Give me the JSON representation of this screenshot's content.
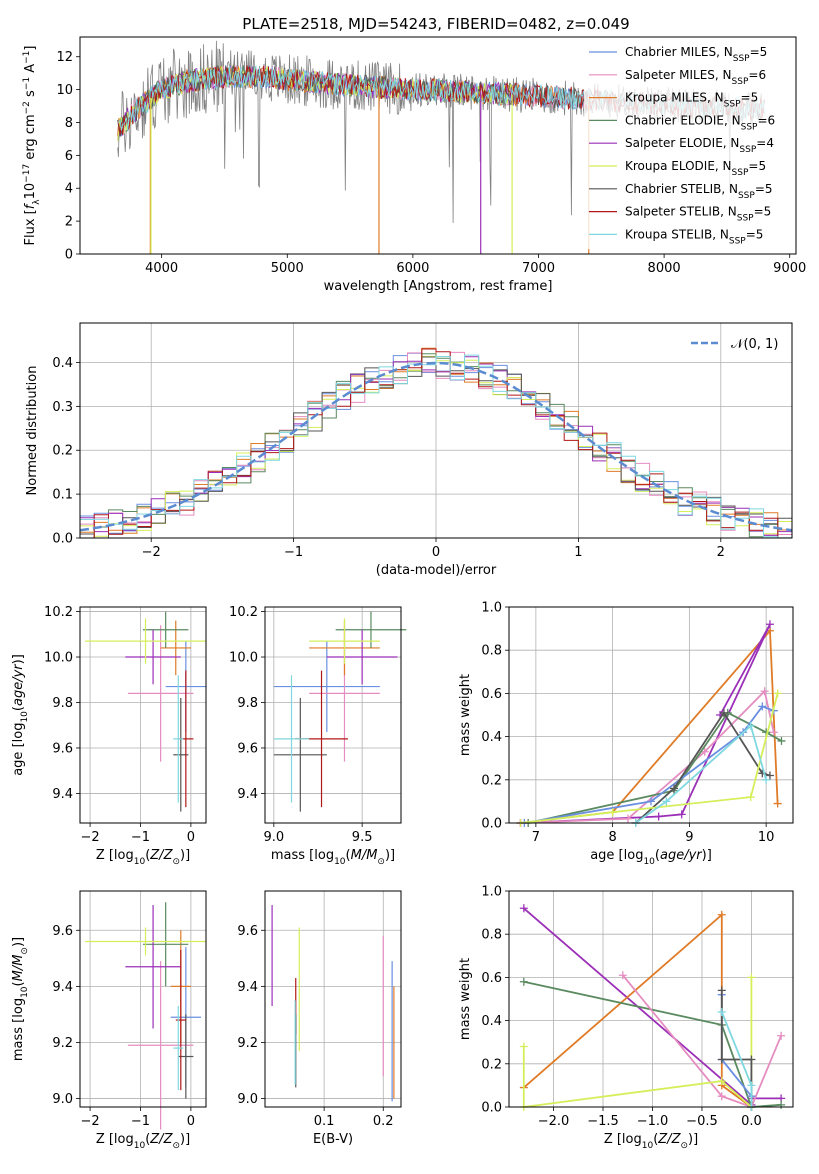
{
  "figure": {
    "title": "PLATE=2518, MJD=54243, FIBERID=0482, z=0.049"
  },
  "chart_data": [
    {
      "id": "spectrum",
      "type": "line",
      "xlabel": "wavelength [Angstrom, rest frame]",
      "ylabel": "Flux [f_λ10^-17 erg cm^-2 s^-1 A^-1]",
      "xlim": [
        3350,
        9050
      ],
      "ylim": [
        0,
        13.2
      ],
      "xticks": [
        4000,
        5000,
        6000,
        7000,
        8000,
        9000
      ],
      "yticks": [
        0,
        2,
        4,
        6,
        8,
        10,
        12
      ],
      "legend_position": "top-right",
      "data_envelope": {
        "x": [
          3650,
          3800,
          4000,
          4200,
          4500,
          4800,
          5000,
          5300,
          5600,
          6000,
          6400,
          6800,
          7200,
          7400,
          7600,
          7800,
          8000,
          8200,
          8500,
          8800
        ],
        "y": [
          7.5,
          8.8,
          10.0,
          10.5,
          10.8,
          10.8,
          10.6,
          10.4,
          10.2,
          10.0,
          9.9,
          9.7,
          9.5,
          9.4,
          9.3,
          9.2,
          9.1,
          9.0,
          8.9,
          8.8
        ]
      },
      "series": [
        {
          "name": "Chabrier MILES",
          "n_ssp": "5",
          "color": "#6a8fe0",
          "xrange": [
            3650,
            7420
          ]
        },
        {
          "name": "Salpeter MILES",
          "n_ssp": "6",
          "color": "#e58cc0",
          "xrange": [
            3650,
            7420
          ]
        },
        {
          "name": "Kroupa MILES",
          "n_ssp": "5",
          "color": "#e07b27",
          "xrange": [
            3650,
            7420
          ]
        },
        {
          "name": "Chabrier ELODIE",
          "n_ssp": "6",
          "color": "#5a8a5f",
          "xrange": [
            3650,
            6800
          ]
        },
        {
          "name": "Salpeter ELODIE",
          "n_ssp": "4",
          "color": "#9b2fb8",
          "xrange": [
            3650,
            6800
          ]
        },
        {
          "name": "Kroupa ELODIE",
          "n_ssp": "5",
          "color": "#d4ef5a",
          "xrange": [
            3650,
            6800
          ]
        },
        {
          "name": "Chabrier STELIB",
          "n_ssp": "5",
          "color": "#555555",
          "xrange": [
            3650,
            8800
          ]
        },
        {
          "name": "Salpeter STELIB",
          "n_ssp": "5",
          "color": "#b01818",
          "xrange": [
            3650,
            8800
          ]
        },
        {
          "name": "Kroupa STELIB",
          "n_ssp": "5",
          "color": "#7fd7e0",
          "xrange": [
            3650,
            8800
          ]
        }
      ]
    },
    {
      "id": "residuals",
      "type": "histogram",
      "xlabel": "(data-model)/error",
      "ylabel": "Normed distribution",
      "xlim": [
        -2.5,
        2.5
      ],
      "ylim": [
        0,
        0.49
      ],
      "xticks": [
        -2,
        -1,
        0,
        1,
        2
      ],
      "yticks": [
        0.0,
        0.1,
        0.2,
        0.3,
        0.4
      ],
      "grid": true,
      "legend_position": "top-right",
      "reference_label": "𝒩(0, 1)",
      "reference_color": "#5b8bd0",
      "bin_width": 0.1
    },
    {
      "id": "age_vs_Z",
      "type": "errorbar",
      "xlabel": "Z [log10(Z/Z⊙)]",
      "ylabel": "age [log10(age/yr)]",
      "xlim": [
        -2.2,
        0.3
      ],
      "ylim": [
        9.27,
        10.22
      ],
      "xticks": [
        -2,
        -1,
        0
      ],
      "yticks": [
        9.4,
        9.6,
        9.8,
        10.0,
        10.2
      ],
      "grid": true,
      "points": [
        {
          "color": "#6a8fe0",
          "x": -0.1,
          "xerr": 0.4,
          "y": 9.87,
          "yerr": 0.2
        },
        {
          "color": "#e58cc0",
          "x": -0.6,
          "xerr": 0.65,
          "y": 9.84,
          "yerr": 0.3
        },
        {
          "color": "#e07b27",
          "x": -0.3,
          "xerr": 0.3,
          "y": 10.04,
          "yerr": 0.12
        },
        {
          "color": "#5a8a5f",
          "x": -0.5,
          "xerr": 0.45,
          "y": 10.12,
          "yerr": 0.08
        },
        {
          "color": "#9b2fb8",
          "x": -0.75,
          "xerr": 0.55,
          "y": 10.0,
          "yerr": 0.12
        },
        {
          "color": "#d4ef5a",
          "x": -0.9,
          "xerr": 1.2,
          "y": 10.07,
          "yerr": 0.1
        },
        {
          "color": "#555555",
          "x": -0.2,
          "xerr": 0.15,
          "y": 9.57,
          "yerr": 0.25
        },
        {
          "color": "#b01818",
          "x": -0.1,
          "xerr": 0.15,
          "y": 9.64,
          "yerr": 0.3
        },
        {
          "color": "#7fd7e0",
          "x": -0.25,
          "xerr": 0.1,
          "y": 9.64,
          "yerr": 0.28
        }
      ]
    },
    {
      "id": "age_vs_mass",
      "type": "errorbar",
      "xlabel": "mass [log10(M/M⊙)]",
      "ylabel": "",
      "xlim": [
        8.95,
        9.72
      ],
      "ylim": [
        9.27,
        10.22
      ],
      "xticks": [
        9.0,
        9.5
      ],
      "yticks": [
        9.4,
        9.6,
        9.8,
        10.0,
        10.2
      ],
      "grid": true,
      "points": [
        {
          "color": "#6a8fe0",
          "x": 9.3,
          "xerr": 0.3,
          "y": 9.87,
          "yerr": 0.2
        },
        {
          "color": "#e58cc0",
          "x": 9.4,
          "xerr": 0.2,
          "y": 9.84,
          "yerr": 0.3
        },
        {
          "color": "#e07b27",
          "x": 9.4,
          "xerr": 0.2,
          "y": 10.04,
          "yerr": 0.12
        },
        {
          "color": "#5a8a5f",
          "x": 9.55,
          "xerr": 0.2,
          "y": 10.12,
          "yerr": 0.08
        },
        {
          "color": "#9b2fb8",
          "x": 9.5,
          "xerr": 0.2,
          "y": 10.0,
          "yerr": 0.12
        },
        {
          "color": "#d4ef5a",
          "x": 9.4,
          "xerr": 0.2,
          "y": 10.07,
          "yerr": 0.1
        },
        {
          "color": "#555555",
          "x": 9.15,
          "xerr": 0.15,
          "y": 9.57,
          "yerr": 0.25
        },
        {
          "color": "#b01818",
          "x": 9.27,
          "xerr": 0.15,
          "y": 9.64,
          "yerr": 0.3
        },
        {
          "color": "#7fd7e0",
          "x": 9.1,
          "xerr": 0.1,
          "y": 9.64,
          "yerr": 0.28
        }
      ]
    },
    {
      "id": "mass_weight_vs_age",
      "type": "line",
      "xlabel": "age [log10(age/yr)]",
      "ylabel": "mass weight",
      "xlim": [
        6.65,
        10.35
      ],
      "ylim": [
        0,
        1.0
      ],
      "xticks": [
        7,
        8,
        9,
        10
      ],
      "yticks": [
        0.0,
        0.2,
        0.4,
        0.6,
        0.8,
        1.0
      ],
      "grid": true,
      "series": [
        {
          "color": "#e07b27",
          "points": [
            [
              6.8,
              0.0
            ],
            [
              8.0,
              0.05
            ],
            [
              10.05,
              0.89
            ],
            [
              10.15,
              0.09
            ]
          ]
        },
        {
          "color": "#9b2fb8",
          "points": [
            [
              6.8,
              0.0
            ],
            [
              8.6,
              0.03
            ],
            [
              8.9,
              0.04
            ],
            [
              10.05,
              0.92
            ],
            [
              9.4,
              0.5
            ]
          ]
        },
        {
          "color": "#e58cc0",
          "points": [
            [
              6.8,
              0.0
            ],
            [
              8.2,
              0.02
            ],
            [
              9.2,
              0.33
            ],
            [
              9.98,
              0.61
            ],
            [
              10.1,
              0.42
            ]
          ]
        },
        {
          "color": "#5a8a5f",
          "points": [
            [
              6.9,
              0.0
            ],
            [
              8.8,
              0.15
            ],
            [
              9.5,
              0.51
            ],
            [
              10.0,
              0.42
            ],
            [
              10.2,
              0.38
            ]
          ]
        },
        {
          "color": "#6a8fe0",
          "points": [
            [
              6.85,
              0.0
            ],
            [
              8.5,
              0.1
            ],
            [
              9.7,
              0.42
            ],
            [
              9.95,
              0.54
            ],
            [
              10.1,
              0.52
            ]
          ]
        },
        {
          "color": "#555555",
          "points": [
            [
              8.3,
              0.0
            ],
            [
              8.8,
              0.16
            ],
            [
              9.45,
              0.51
            ],
            [
              9.95,
              0.23
            ],
            [
              10.05,
              0.22
            ]
          ]
        },
        {
          "color": "#d4ef5a",
          "points": [
            [
              6.8,
              0.0
            ],
            [
              8.0,
              0.05
            ],
            [
              9.8,
              0.12
            ],
            [
              10.15,
              0.6
            ]
          ]
        },
        {
          "color": "#7fd7e0",
          "points": [
            [
              8.3,
              0.0
            ],
            [
              8.7,
              0.1
            ],
            [
              9.8,
              0.45
            ],
            [
              10.0,
              0.2
            ]
          ]
        }
      ]
    },
    {
      "id": "mass_vs_Z",
      "type": "errorbar",
      "xlabel": "Z [log10(Z/Z⊙)]",
      "ylabel": "mass [log10(M/M⊙)]",
      "xlim": [
        -2.2,
        0.3
      ],
      "ylim": [
        8.97,
        9.74
      ],
      "xticks": [
        -2,
        -1,
        0
      ],
      "yticks": [
        9.0,
        9.2,
        9.4,
        9.6
      ],
      "grid": true,
      "points": [
        {
          "color": "#6a8fe0",
          "x": -0.1,
          "xerr": 0.3,
          "y": 9.29,
          "yerr": 0.25
        },
        {
          "color": "#e58cc0",
          "x": -0.6,
          "xerr": 0.65,
          "y": 9.19,
          "yerr": 0.3
        },
        {
          "color": "#e07b27",
          "x": -0.2,
          "xerr": 0.2,
          "y": 9.4,
          "yerr": 0.2
        },
        {
          "color": "#5a8a5f",
          "x": -0.5,
          "xerr": 0.45,
          "y": 9.55,
          "yerr": 0.15
        },
        {
          "color": "#9b2fb8",
          "x": -0.75,
          "xerr": 0.55,
          "y": 9.47,
          "yerr": 0.22
        },
        {
          "color": "#d4ef5a",
          "x": -0.9,
          "xerr": 1.2,
          "y": 9.56,
          "yerr": 0.05
        },
        {
          "color": "#555555",
          "x": -0.1,
          "xerr": 0.15,
          "y": 9.15,
          "yerr": 0.15
        },
        {
          "color": "#b01818",
          "x": -0.2,
          "xerr": 0.1,
          "y": 9.28,
          "yerr": 0.25
        },
        {
          "color": "#7fd7e0",
          "x": -0.25,
          "xerr": 0.1,
          "y": 9.18,
          "yerr": 0.15
        }
      ]
    },
    {
      "id": "mass_vs_ebv",
      "type": "errorbar",
      "xlabel": "E(B-V)",
      "ylabel": "",
      "xlim": [
        0.0,
        0.23
      ],
      "ylim": [
        8.97,
        9.74
      ],
      "xticks": [
        0.1,
        0.2
      ],
      "yticks": [
        9.0,
        9.2,
        9.4,
        9.6
      ],
      "grid": true,
      "points": [
        {
          "color": "#9b2fb8",
          "x": 0.012,
          "xerr": 0,
          "y": 9.51,
          "yerr": 0.18
        },
        {
          "color": "#b01818",
          "x": 0.052,
          "xerr": 0,
          "y": 9.33,
          "yerr": 0.1
        },
        {
          "color": "#555555",
          "x": 0.052,
          "xerr": 0,
          "y": 9.17,
          "yerr": 0.13
        },
        {
          "color": "#7fd7e0",
          "x": 0.051,
          "xerr": 0,
          "y": 9.2,
          "yerr": 0.15
        },
        {
          "color": "#d4ef5a",
          "x": 0.058,
          "xerr": 0,
          "y": 9.39,
          "yerr": 0.22
        },
        {
          "color": "#e58cc0",
          "x": 0.2,
          "xerr": 0,
          "y": 9.33,
          "yerr": 0.25
        },
        {
          "color": "#6a8fe0",
          "x": 0.215,
          "xerr": 0,
          "y": 9.24,
          "yerr": 0.25
        },
        {
          "color": "#e07b27",
          "x": 0.218,
          "xerr": 0,
          "y": 9.2,
          "yerr": 0.2
        }
      ]
    },
    {
      "id": "mass_weight_vs_Z",
      "type": "line",
      "xlabel": "Z [log10(Z/Z⊙)]",
      "ylabel": "mass weight",
      "xlim": [
        -2.45,
        0.42
      ],
      "ylim": [
        0,
        1.0
      ],
      "xticks": [
        -2.0,
        -1.5,
        -1.0,
        -0.5,
        0.0
      ],
      "yticks": [
        0.0,
        0.2,
        0.4,
        0.6,
        0.8,
        1.0
      ],
      "grid": true,
      "series": [
        {
          "color": "#9b2fb8",
          "points": [
            [
              -2.3,
              0.92
            ],
            [
              0.0,
              0.01
            ],
            [
              0.0,
              0.04
            ],
            [
              0.3,
              0.04
            ]
          ]
        },
        {
          "color": "#e07b27",
          "points": [
            [
              -2.3,
              0.09
            ],
            [
              -0.3,
              0.89
            ],
            [
              -0.3,
              0.1
            ],
            [
              0.0,
              0.0
            ]
          ]
        },
        {
          "color": "#5a8a5f",
          "points": [
            [
              -2.3,
              0.58
            ],
            [
              -0.3,
              0.38
            ],
            [
              0.0,
              0.0
            ],
            [
              0.3,
              0.01
            ]
          ]
        },
        {
          "color": "#e58cc0",
          "points": [
            [
              -1.3,
              0.61
            ],
            [
              -0.3,
              0.05
            ],
            [
              0.0,
              0.0
            ],
            [
              0.3,
              0.33
            ]
          ]
        },
        {
          "color": "#d4ef5a",
          "points": [
            [
              -2.3,
              0.28
            ],
            [
              -2.3,
              0.0
            ],
            [
              -0.3,
              0.12
            ],
            [
              0.0,
              0.0
            ],
            [
              0.0,
              0.6
            ]
          ]
        },
        {
          "color": "#6a8fe0",
          "points": [
            [
              -0.3,
              0.52
            ],
            [
              -0.3,
              0.22
            ],
            [
              0.0,
              0.05
            ]
          ]
        },
        {
          "color": "#555555",
          "points": [
            [
              -0.3,
              0.54
            ],
            [
              -0.3,
              0.22
            ],
            [
              0.0,
              0.22
            ],
            [
              0.0,
              0.0
            ]
          ]
        },
        {
          "color": "#7fd7e0",
          "points": [
            [
              -0.3,
              0.44
            ],
            [
              0.0,
              0.1
            ],
            [
              0.0,
              0.0
            ]
          ]
        }
      ]
    }
  ]
}
